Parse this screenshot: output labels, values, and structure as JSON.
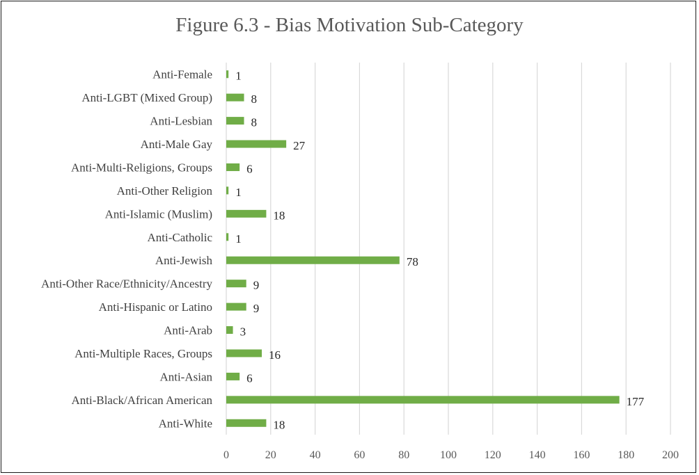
{
  "chart_data": {
    "type": "bar",
    "orientation": "horizontal",
    "title": "Figure 6.3 - Bias Motivation Sub-Category",
    "xlabel": "",
    "ylabel": "",
    "categories": [
      "Anti-Female",
      "Anti-LGBT (Mixed Group)",
      "Anti-Lesbian",
      "Anti-Male Gay",
      "Anti-Multi-Religions, Groups",
      "Anti-Other Religion",
      "Anti-Islamic (Muslim)",
      "Anti-Catholic",
      "Anti-Jewish",
      "Anti-Other Race/Ethnicity/Ancestry",
      "Anti-Hispanic or Latino",
      "Anti-Arab",
      "Anti-Multiple Races, Groups",
      "Anti-Asian",
      "Anti-Black/African American",
      "Anti-White"
    ],
    "values": [
      1,
      8,
      8,
      27,
      6,
      1,
      18,
      1,
      78,
      9,
      9,
      3,
      16,
      6,
      177,
      18
    ],
    "xlim": [
      0,
      200
    ],
    "xticks": [
      "0",
      "20",
      "40",
      "60",
      "80",
      "100",
      "120",
      "140",
      "160",
      "180",
      "200"
    ],
    "grid": "vertical",
    "legend": "none",
    "data_labels": true,
    "colors": {
      "bar": "#70ad47",
      "grid": "#d9d9d9",
      "border": "#1a1a1a"
    }
  }
}
